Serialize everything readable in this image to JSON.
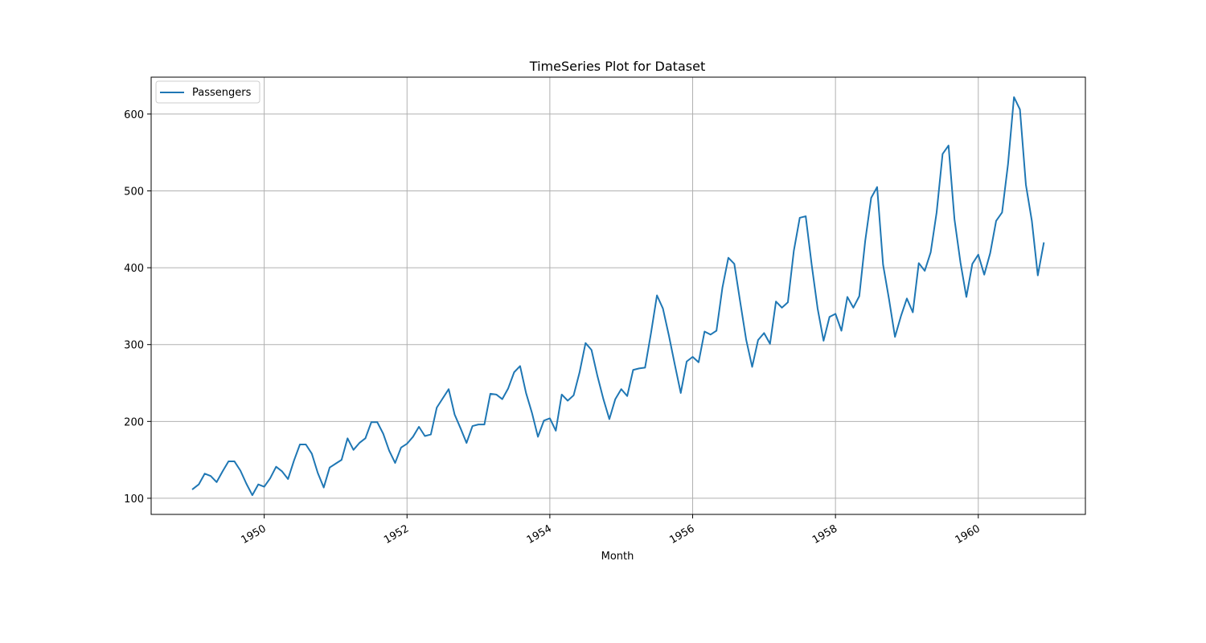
{
  "chart_data": {
    "type": "line",
    "title": "TimeSeries Plot for Dataset",
    "xlabel": "Month",
    "ylabel": "",
    "x_start": "1949-01",
    "x_step": "month",
    "x_ticks": [
      "1950",
      "1952",
      "1954",
      "1956",
      "1958",
      "1960"
    ],
    "y_ticks": [
      100,
      200,
      300,
      400,
      500,
      600
    ],
    "xlim": [
      "1948-06",
      "1961-07"
    ],
    "ylim": [
      79,
      648
    ],
    "grid": true,
    "legend_position": "upper left",
    "series": [
      {
        "name": "Passengers",
        "color": "#1f77b4",
        "values": [
          112,
          118,
          132,
          129,
          121,
          135,
          148,
          148,
          136,
          119,
          104,
          118,
          115,
          126,
          141,
          135,
          125,
          149,
          170,
          170,
          158,
          133,
          114,
          140,
          145,
          150,
          178,
          163,
          172,
          178,
          199,
          199,
          184,
          162,
          146,
          166,
          171,
          180,
          193,
          181,
          183,
          218,
          230,
          242,
          209,
          191,
          172,
          194,
          196,
          196,
          236,
          235,
          229,
          243,
          264,
          272,
          237,
          211,
          180,
          201,
          204,
          188,
          235,
          227,
          234,
          264,
          302,
          293,
          259,
          229,
          203,
          229,
          242,
          233,
          267,
          269,
          270,
          315,
          364,
          347,
          312,
          274,
          237,
          278,
          284,
          277,
          317,
          313,
          318,
          374,
          413,
          405,
          355,
          306,
          271,
          306,
          315,
          301,
          356,
          348,
          355,
          422,
          465,
          467,
          404,
          347,
          305,
          336,
          340,
          318,
          362,
          348,
          363,
          435,
          491,
          505,
          404,
          359,
          310,
          337,
          360,
          342,
          406,
          396,
          420,
          472,
          548,
          559,
          463,
          407,
          362,
          405,
          417,
          391,
          419,
          461,
          472,
          535,
          622,
          606,
          508,
          461,
          390,
          432
        ]
      }
    ]
  }
}
